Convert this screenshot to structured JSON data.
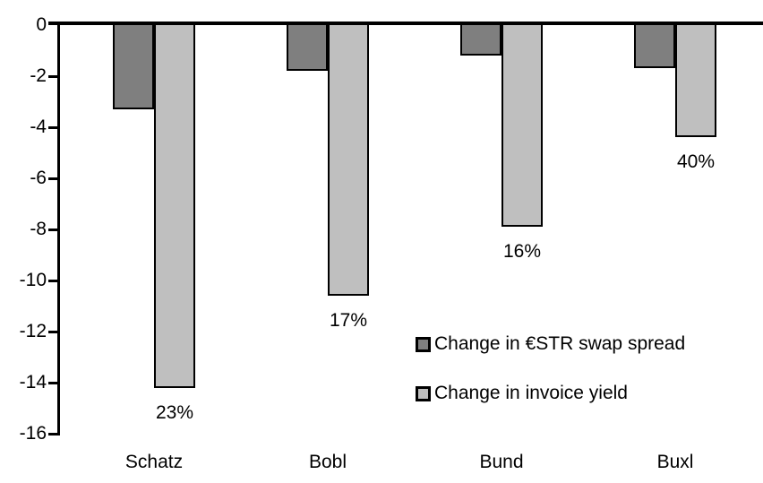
{
  "chart_data": {
    "type": "bar",
    "categories": [
      "Schatz",
      "Bobl",
      "Bund",
      "Buxl"
    ],
    "series": [
      {
        "name": "Change in €STR swap spread",
        "color": "#7F7F7F",
        "values": [
          -3.3,
          -1.8,
          -1.2,
          -1.7
        ]
      },
      {
        "name": "Change in invoice yield",
        "color": "#BFBFBF",
        "values": [
          -14.2,
          -10.6,
          -7.9,
          -4.4
        ],
        "data_labels": [
          "23%",
          "17%",
          "16%",
          "40%"
        ]
      }
    ],
    "ylim": [
      -16,
      0
    ],
    "y_ticks": [
      0,
      -2,
      -4,
      -6,
      -8,
      -10,
      -12,
      -14,
      -16
    ],
    "grid": false,
    "legend_position": "inside-center-right",
    "axis_color": "#000000",
    "bar_border_color": "#000000",
    "background_color": "#FFFFFF"
  }
}
